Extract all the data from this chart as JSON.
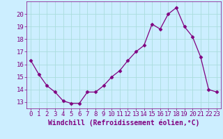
{
  "x": [
    0,
    1,
    2,
    3,
    4,
    5,
    6,
    7,
    8,
    9,
    10,
    11,
    12,
    13,
    14,
    15,
    16,
    17,
    18,
    19,
    20,
    21,
    22,
    23
  ],
  "y": [
    16.3,
    15.2,
    14.3,
    13.8,
    13.1,
    12.9,
    12.9,
    13.8,
    13.8,
    14.3,
    15.0,
    15.5,
    16.3,
    17.0,
    17.5,
    19.2,
    18.8,
    20.0,
    20.5,
    19.0,
    18.2,
    16.6,
    14.0,
    13.8
  ],
  "line_color": "#800080",
  "marker": "D",
  "marker_size": 2.5,
  "bg_color": "#cceeff",
  "grid_color": "#aadddd",
  "tick_color": "#800080",
  "label_color": "#800080",
  "xlabel": "Windchill (Refroidissement éolien,°C)",
  "ylim": [
    12.5,
    21.0
  ],
  "yticks": [
    13,
    14,
    15,
    16,
    17,
    18,
    19,
    20
  ],
  "xlim": [
    -0.5,
    23.5
  ],
  "xticks": [
    0,
    1,
    2,
    3,
    4,
    5,
    6,
    7,
    8,
    9,
    10,
    11,
    12,
    13,
    14,
    15,
    16,
    17,
    18,
    19,
    20,
    21,
    22,
    23
  ],
  "font_size": 6.5,
  "xlabel_fontsize": 7.0
}
